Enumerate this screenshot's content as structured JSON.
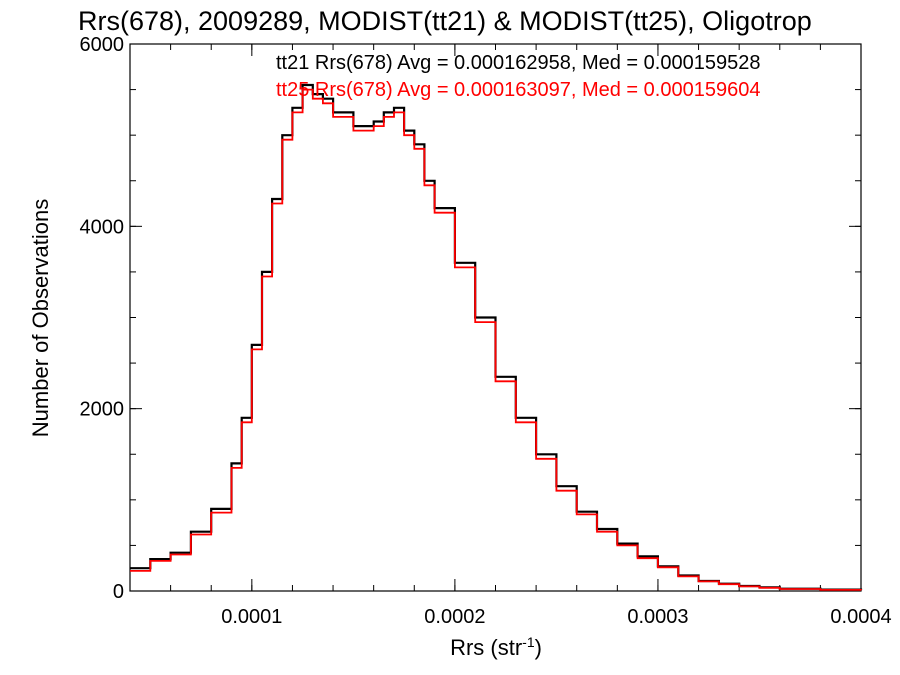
{
  "chart_data": {
    "type": "line",
    "title": "Rrs(678), 2009289, MODIST(tt21) & MODIST(tt25), Oligotrop",
    "xlabel": "Rrs (str",
    "xlabel_sup": "-1",
    "xlabel_suffix": ")",
    "ylabel": "Number of Observations",
    "xlim": [
      4e-05,
      0.0004
    ],
    "ylim": [
      0,
      6000
    ],
    "xticks": [
      {
        "value": 0.0001,
        "label": "0.0001"
      },
      {
        "value": 0.0002,
        "label": "0.0002"
      },
      {
        "value": 0.0003,
        "label": "0.0003"
      },
      {
        "value": 0.0004,
        "label": "0.0004"
      }
    ],
    "yticks": [
      {
        "value": 0,
        "label": "0"
      },
      {
        "value": 2000,
        "label": "2000"
      },
      {
        "value": 4000,
        "label": "4000"
      },
      {
        "value": 6000,
        "label": "6000"
      }
    ],
    "annotations": [
      {
        "text": "tt21 Rrs(678) Avg = 0.000162958, Med = 0.000159528",
        "color": "#000000"
      },
      {
        "text": "tt25 Rrs(678) Avg = 0.000163097, Med = 0.000159604",
        "color": "#ff0000"
      }
    ],
    "x": [
      4e-05,
      5e-05,
      6e-05,
      7e-05,
      8e-05,
      9e-05,
      9.5e-05,
      0.0001,
      0.000105,
      0.00011,
      0.000115,
      0.00012,
      0.000125,
      0.00013,
      0.000135,
      0.00014,
      0.00015,
      0.00016,
      0.000165,
      0.00017,
      0.000175,
      0.00018,
      0.000185,
      0.00019,
      0.0002,
      0.00021,
      0.00022,
      0.00023,
      0.00024,
      0.00025,
      0.00026,
      0.00027,
      0.00028,
      0.00029,
      0.0003,
      0.00031,
      0.00032,
      0.00033,
      0.00034,
      0.00035,
      0.00036,
      0.00038,
      0.0004
    ],
    "series": [
      {
        "name": "tt21",
        "color": "#000000",
        "values": [
          250,
          350,
          420,
          650,
          900,
          1400,
          1900,
          2700,
          3500,
          4300,
          5000,
          5300,
          5550,
          5450,
          5400,
          5250,
          5100,
          5150,
          5250,
          5300,
          5050,
          4900,
          4500,
          4200,
          3600,
          3000,
          2350,
          1900,
          1500,
          1150,
          870,
          680,
          520,
          380,
          270,
          170,
          110,
          80,
          55,
          40,
          25,
          15,
          10
        ]
      },
      {
        "name": "tt25",
        "color": "#ff0000",
        "values": [
          220,
          330,
          400,
          620,
          860,
          1350,
          1850,
          2650,
          3450,
          4250,
          4950,
          5250,
          5500,
          5400,
          5350,
          5200,
          5050,
          5100,
          5200,
          5250,
          5000,
          4850,
          4450,
          4150,
          3550,
          2950,
          2300,
          1850,
          1450,
          1100,
          840,
          650,
          500,
          360,
          260,
          160,
          105,
          75,
          50,
          35,
          22,
          12,
          8
        ]
      }
    ]
  }
}
